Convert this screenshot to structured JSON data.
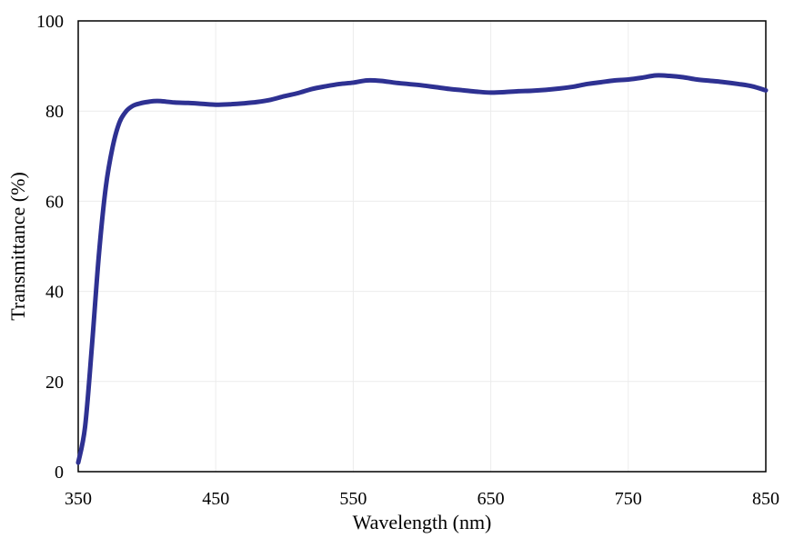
{
  "chart_data": {
    "type": "line",
    "xlabel": "Wavelength (nm)",
    "ylabel": "Transmittance (%)",
    "xlim": [
      350,
      850
    ],
    "ylim": [
      0,
      100
    ],
    "x_ticks": [
      350,
      450,
      550,
      650,
      750,
      850
    ],
    "y_ticks": [
      0,
      20,
      40,
      60,
      80,
      100
    ],
    "grid": true,
    "series_color": "#2e3192",
    "series": [
      {
        "x": [
          350,
          355,
          360,
          365,
          370,
          375,
          380,
          385,
          390,
          395,
          400,
          405,
          410,
          420,
          430,
          440,
          450,
          460,
          470,
          480,
          490,
          500,
          510,
          520,
          530,
          540,
          550,
          560,
          570,
          580,
          590,
          600,
          610,
          620,
          630,
          640,
          650,
          660,
          670,
          680,
          690,
          700,
          710,
          720,
          730,
          740,
          750,
          760,
          770,
          780,
          790,
          800,
          810,
          820,
          830,
          840,
          850
        ],
        "y": [
          2,
          10,
          28,
          48,
          63,
          72,
          77.5,
          80,
          81.2,
          81.7,
          82,
          82.2,
          82.2,
          81.9,
          81.8,
          81.6,
          81.4,
          81.5,
          81.7,
          82,
          82.5,
          83.3,
          84,
          84.9,
          85.5,
          86,
          86.3,
          86.8,
          86.7,
          86.3,
          86,
          85.7,
          85.3,
          84.9,
          84.6,
          84.3,
          84.1,
          84.2,
          84.4,
          84.5,
          84.7,
          85,
          85.4,
          86,
          86.4,
          86.8,
          87,
          87.4,
          87.9,
          87.8,
          87.5,
          87,
          86.7,
          86.4,
          86,
          85.5,
          84.6
        ]
      }
    ]
  }
}
